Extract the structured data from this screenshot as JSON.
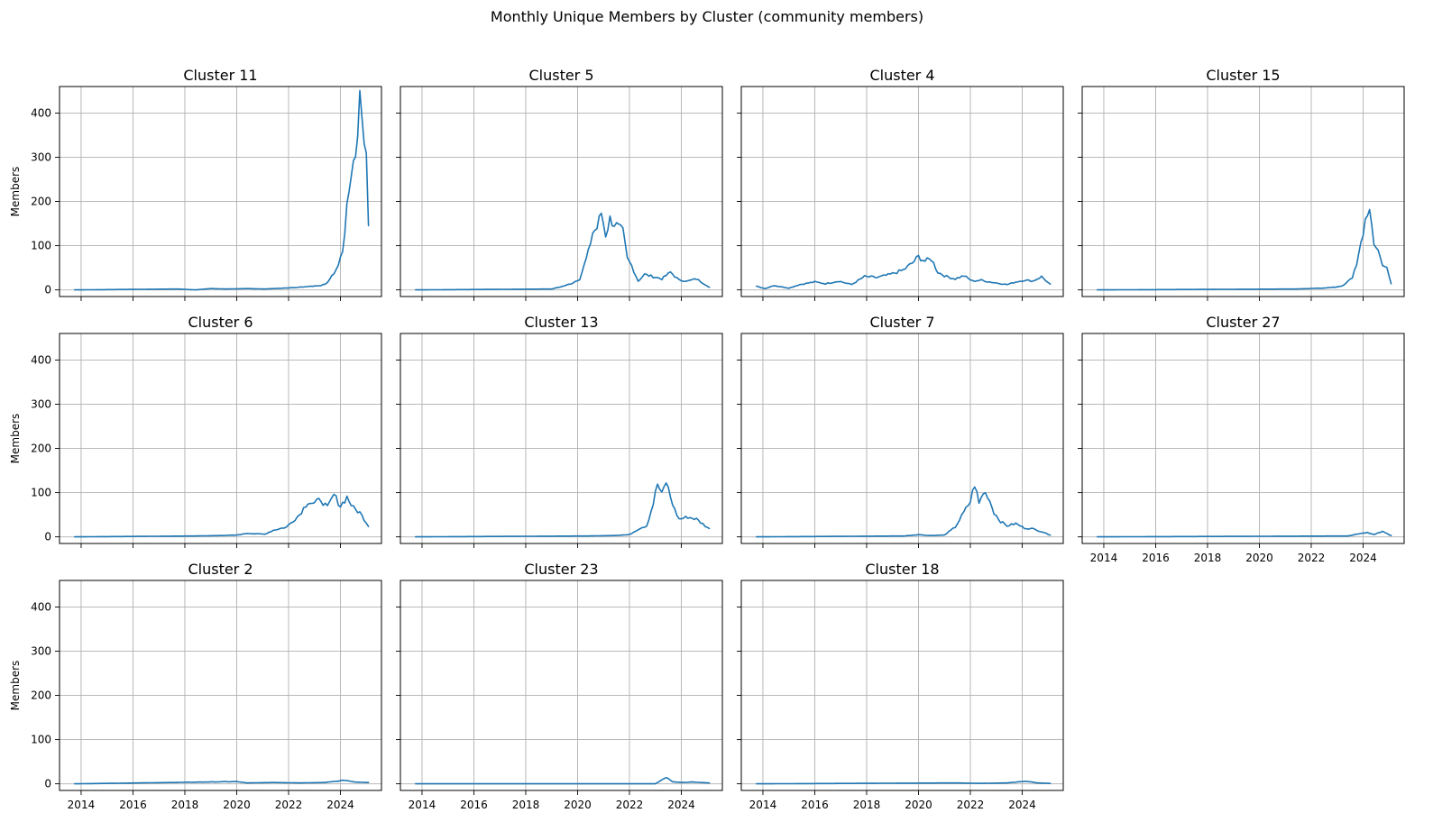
{
  "title": "Monthly Unique Members by Cluster (community members)",
  "colors": {
    "line": "#1f77b4",
    "grid": "#b0b0b0"
  },
  "chart_data": {
    "type": "line",
    "layout": {
      "rows": 3,
      "cols": 4,
      "sharex": true,
      "sharey": true,
      "grid": true
    },
    "ylabel": "Members",
    "xlim": [
      "2013-03",
      "2025-08"
    ],
    "ylim": [
      -15,
      460
    ],
    "x_ticks": [
      "2014",
      "2016",
      "2018",
      "2020",
      "2022",
      "2024"
    ],
    "y_ticks": [
      0,
      100,
      200,
      300,
      400
    ],
    "x_start": "2013-10",
    "x_end": "2025-02",
    "panels": [
      {
        "title": "Cluster 11",
        "series": [
          [
            "2013-10",
            0
          ],
          [
            "2017-10",
            2
          ],
          [
            "2018-06",
            0
          ],
          [
            "2019-01",
            3
          ],
          [
            "2019-08",
            2
          ],
          [
            "2020-06",
            3
          ],
          [
            "2021-02",
            2
          ],
          [
            "2021-10",
            4
          ],
          [
            "2022-04",
            5
          ],
          [
            "2022-10",
            8
          ],
          [
            "2023-02",
            9
          ],
          [
            "2023-06",
            12
          ],
          [
            "2023-09",
            30
          ],
          [
            "2023-12",
            55
          ],
          [
            "2024-02",
            90
          ],
          [
            "2024-04",
            180
          ],
          [
            "2024-06",
            270
          ],
          [
            "2024-08",
            310
          ],
          [
            "2024-10",
            430
          ],
          [
            "2024-11",
            400
          ],
          [
            "2024-12",
            340
          ],
          [
            "2025-01",
            335
          ],
          [
            "2025-02",
            135
          ]
        ]
      },
      {
        "title": "Cluster 5",
        "series": [
          [
            "2013-10",
            0
          ],
          [
            "2019-01",
            2
          ],
          [
            "2019-06",
            8
          ],
          [
            "2019-10",
            14
          ],
          [
            "2020-02",
            25
          ],
          [
            "2020-06",
            85
          ],
          [
            "2020-08",
            130
          ],
          [
            "2020-10",
            140
          ],
          [
            "2020-12",
            175
          ],
          [
            "2021-02",
            125
          ],
          [
            "2021-04",
            160
          ],
          [
            "2021-06",
            150
          ],
          [
            "2021-08",
            140
          ],
          [
            "2021-10",
            130
          ],
          [
            "2021-12",
            70
          ],
          [
            "2022-02",
            55
          ],
          [
            "2022-05",
            20
          ],
          [
            "2022-08",
            35
          ],
          [
            "2022-12",
            30
          ],
          [
            "2023-04",
            25
          ],
          [
            "2023-08",
            40
          ],
          [
            "2023-12",
            22
          ],
          [
            "2024-04",
            20
          ],
          [
            "2024-08",
            25
          ],
          [
            "2025-02",
            6
          ]
        ]
      },
      {
        "title": "Cluster 4",
        "series": [
          [
            "2013-10",
            8
          ],
          [
            "2014-02",
            3
          ],
          [
            "2014-06",
            10
          ],
          [
            "2015-01",
            4
          ],
          [
            "2015-06",
            12
          ],
          [
            "2016-01",
            18
          ],
          [
            "2016-06",
            14
          ],
          [
            "2016-12",
            20
          ],
          [
            "2017-06",
            12
          ],
          [
            "2017-12",
            30
          ],
          [
            "2018-06",
            28
          ],
          [
            "2018-12",
            35
          ],
          [
            "2019-06",
            45
          ],
          [
            "2019-10",
            60
          ],
          [
            "2020-01",
            75
          ],
          [
            "2020-04",
            65
          ],
          [
            "2020-07",
            70
          ],
          [
            "2020-10",
            40
          ],
          [
            "2021-02",
            30
          ],
          [
            "2021-06",
            25
          ],
          [
            "2021-10",
            32
          ],
          [
            "2022-02",
            20
          ],
          [
            "2022-06",
            22
          ],
          [
            "2022-10",
            18
          ],
          [
            "2023-02",
            15
          ],
          [
            "2023-06",
            12
          ],
          [
            "2023-10",
            18
          ],
          [
            "2024-02",
            22
          ],
          [
            "2024-06",
            20
          ],
          [
            "2024-10",
            30
          ],
          [
            "2025-02",
            12
          ]
        ]
      },
      {
        "title": "Cluster 15",
        "series": [
          [
            "2013-10",
            0
          ],
          [
            "2021-06",
            2
          ],
          [
            "2022-06",
            4
          ],
          [
            "2022-12",
            6
          ],
          [
            "2023-04",
            10
          ],
          [
            "2023-08",
            28
          ],
          [
            "2023-10",
            60
          ],
          [
            "2024-01",
            120
          ],
          [
            "2024-02",
            165
          ],
          [
            "2024-04",
            180
          ],
          [
            "2024-06",
            110
          ],
          [
            "2024-08",
            85
          ],
          [
            "2024-10",
            55
          ],
          [
            "2024-12",
            50
          ],
          [
            "2025-02",
            15
          ]
        ]
      },
      {
        "title": "Cluster 6",
        "series": [
          [
            "2013-10",
            0
          ],
          [
            "2018-06",
            2
          ],
          [
            "2019-06",
            3
          ],
          [
            "2020-01",
            4
          ],
          [
            "2020-06",
            8
          ],
          [
            "2021-02",
            6
          ],
          [
            "2021-06",
            15
          ],
          [
            "2021-12",
            22
          ],
          [
            "2022-06",
            50
          ],
          [
            "2022-10",
            80
          ],
          [
            "2023-01",
            75
          ],
          [
            "2023-04",
            85
          ],
          [
            "2023-07",
            65
          ],
          [
            "2023-10",
            95
          ],
          [
            "2024-01",
            70
          ],
          [
            "2024-04",
            90
          ],
          [
            "2024-07",
            65
          ],
          [
            "2024-10",
            55
          ],
          [
            "2025-02",
            25
          ]
        ]
      },
      {
        "title": "Cluster 13",
        "series": [
          [
            "2013-10",
            0
          ],
          [
            "2020-06",
            2
          ],
          [
            "2021-06",
            3
          ],
          [
            "2022-01",
            5
          ],
          [
            "2022-06",
            20
          ],
          [
            "2022-09",
            25
          ],
          [
            "2022-12",
            75
          ],
          [
            "2023-02",
            120
          ],
          [
            "2023-04",
            95
          ],
          [
            "2023-06",
            125
          ],
          [
            "2023-08",
            90
          ],
          [
            "2023-10",
            60
          ],
          [
            "2023-12",
            40
          ],
          [
            "2024-04",
            45
          ],
          [
            "2024-08",
            40
          ],
          [
            "2025-02",
            18
          ]
        ]
      },
      {
        "title": "Cluster 7",
        "series": [
          [
            "2013-10",
            0
          ],
          [
            "2019-06",
            2
          ],
          [
            "2020-01",
            5
          ],
          [
            "2020-06",
            3
          ],
          [
            "2021-01",
            4
          ],
          [
            "2021-06",
            22
          ],
          [
            "2021-10",
            55
          ],
          [
            "2022-01",
            80
          ],
          [
            "2022-03",
            120
          ],
          [
            "2022-05",
            75
          ],
          [
            "2022-07",
            100
          ],
          [
            "2022-09",
            95
          ],
          [
            "2022-12",
            55
          ],
          [
            "2023-03",
            35
          ],
          [
            "2023-06",
            25
          ],
          [
            "2023-10",
            30
          ],
          [
            "2024-02",
            20
          ],
          [
            "2024-06",
            18
          ],
          [
            "2024-10",
            12
          ],
          [
            "2025-02",
            4
          ]
        ]
      },
      {
        "title": "Cluster 27",
        "series": [
          [
            "2013-10",
            0
          ],
          [
            "2023-06",
            2
          ],
          [
            "2023-12",
            8
          ],
          [
            "2024-03",
            10
          ],
          [
            "2024-06",
            5
          ],
          [
            "2024-10",
            12
          ],
          [
            "2025-02",
            3
          ]
        ]
      },
      {
        "title": "Cluster 2",
        "series": [
          [
            "2013-10",
            0
          ],
          [
            "2020-01",
            5
          ],
          [
            "2020-06",
            2
          ],
          [
            "2021-06",
            3
          ],
          [
            "2022-06",
            2
          ],
          [
            "2023-06",
            3
          ],
          [
            "2024-03",
            8
          ],
          [
            "2024-08",
            4
          ],
          [
            "2025-02",
            3
          ]
        ]
      },
      {
        "title": "Cluster 23",
        "series": [
          [
            "2013-10",
            0
          ],
          [
            "2023-01",
            0
          ],
          [
            "2023-06",
            15
          ],
          [
            "2023-09",
            5
          ],
          [
            "2024-01",
            3
          ],
          [
            "2024-06",
            4
          ],
          [
            "2025-02",
            2
          ]
        ]
      },
      {
        "title": "Cluster 18",
        "series": [
          [
            "2013-10",
            0
          ],
          [
            "2021-06",
            2
          ],
          [
            "2022-06",
            1
          ],
          [
            "2023-06",
            2
          ],
          [
            "2024-03",
            6
          ],
          [
            "2024-08",
            2
          ],
          [
            "2025-02",
            1
          ]
        ]
      }
    ]
  }
}
